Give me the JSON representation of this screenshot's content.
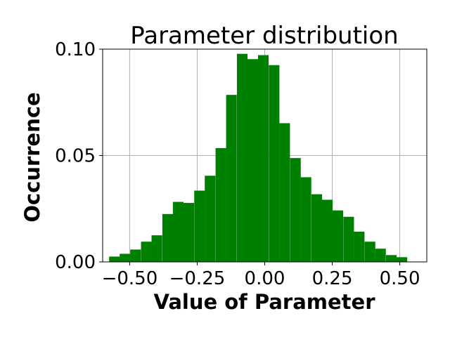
{
  "chart_data": {
    "type": "bar",
    "title": "Parameter distribution",
    "xlabel": "Value of Parameter",
    "ylabel": "Occurrence",
    "xlim": [
      -0.6,
      0.6
    ],
    "ylim": [
      0,
      0.1
    ],
    "grid": true,
    "bar_color": "#008000",
    "bin_width": 0.0394,
    "bins": [
      {
        "x0": -0.576,
        "value": 0.0025
      },
      {
        "x0": -0.537,
        "value": 0.0038
      },
      {
        "x0": -0.498,
        "value": 0.0058
      },
      {
        "x0": -0.458,
        "value": 0.0095
      },
      {
        "x0": -0.419,
        "value": 0.0125
      },
      {
        "x0": -0.379,
        "value": 0.0225
      },
      {
        "x0": -0.34,
        "value": 0.0282
      },
      {
        "x0": -0.301,
        "value": 0.0277
      },
      {
        "x0": -0.261,
        "value": 0.0335
      },
      {
        "x0": -0.222,
        "value": 0.0405
      },
      {
        "x0": -0.182,
        "value": 0.0535
      },
      {
        "x0": -0.143,
        "value": 0.0785
      },
      {
        "x0": -0.103,
        "value": 0.0978
      },
      {
        "x0": -0.064,
        "value": 0.0953
      },
      {
        "x0": -0.025,
        "value": 0.0972
      },
      {
        "x0": 0.015,
        "value": 0.0925
      },
      {
        "x0": 0.054,
        "value": 0.0652
      },
      {
        "x0": 0.094,
        "value": 0.0488
      },
      {
        "x0": 0.133,
        "value": 0.0398
      },
      {
        "x0": 0.173,
        "value": 0.0318
      },
      {
        "x0": 0.212,
        "value": 0.0292
      },
      {
        "x0": 0.251,
        "value": 0.0242
      },
      {
        "x0": 0.291,
        "value": 0.0212
      },
      {
        "x0": 0.33,
        "value": 0.0142
      },
      {
        "x0": 0.37,
        "value": 0.0095
      },
      {
        "x0": 0.409,
        "value": 0.0062
      },
      {
        "x0": 0.449,
        "value": 0.0032
      },
      {
        "x0": 0.488,
        "value": 0.0022
      }
    ],
    "x_ticks": [
      {
        "value": -0.5,
        "label": "−0.50"
      },
      {
        "value": -0.25,
        "label": "−0.25"
      },
      {
        "value": 0.0,
        "label": "0.00"
      },
      {
        "value": 0.25,
        "label": "0.25"
      },
      {
        "value": 0.5,
        "label": "0.50"
      }
    ],
    "y_ticks": [
      {
        "value": 0.0,
        "label": "0.00"
      },
      {
        "value": 0.05,
        "label": "0.05"
      },
      {
        "value": 0.1,
        "label": "0.10"
      }
    ]
  }
}
